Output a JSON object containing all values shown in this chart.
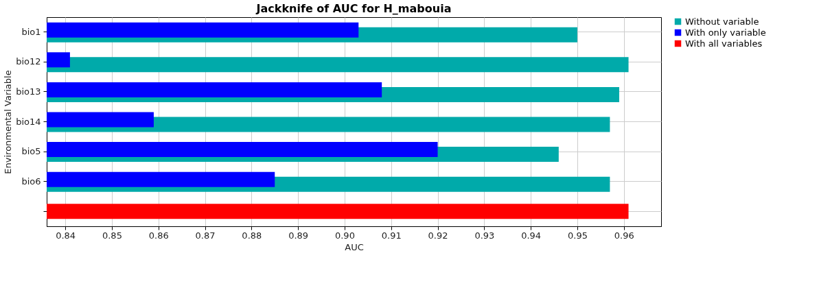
{
  "chart_data": {
    "type": "bar",
    "orientation": "horizontal",
    "title": "Jackknife of AUC for H_mabouia",
    "xlabel": "AUC",
    "ylabel": "Environmental Variable",
    "categories": [
      "bio1",
      "bio12",
      "bio13",
      "bio14",
      "bio5",
      "bio6",
      null
    ],
    "series": [
      {
        "name": "Without variable",
        "color": "#00aaaa",
        "values": [
          0.95,
          0.961,
          0.959,
          0.957,
          0.946,
          0.957,
          null
        ]
      },
      {
        "name": "With only variable",
        "color": "#0000ff",
        "values": [
          0.903,
          0.841,
          0.908,
          0.859,
          0.92,
          0.885,
          null
        ]
      },
      {
        "name": "With all variables",
        "color": "#ff0000",
        "values": [
          null,
          null,
          null,
          null,
          null,
          null,
          0.961
        ]
      }
    ],
    "xlim": [
      0.836,
      0.968
    ],
    "xticks": [
      0.84,
      0.85,
      0.86,
      0.87,
      0.88,
      0.89,
      {
        "value": 0.9,
        "label": "0.90"
      },
      0.91,
      0.92,
      0.93,
      0.94,
      0.95,
      0.96
    ],
    "grid": true,
    "legend": "top right"
  }
}
